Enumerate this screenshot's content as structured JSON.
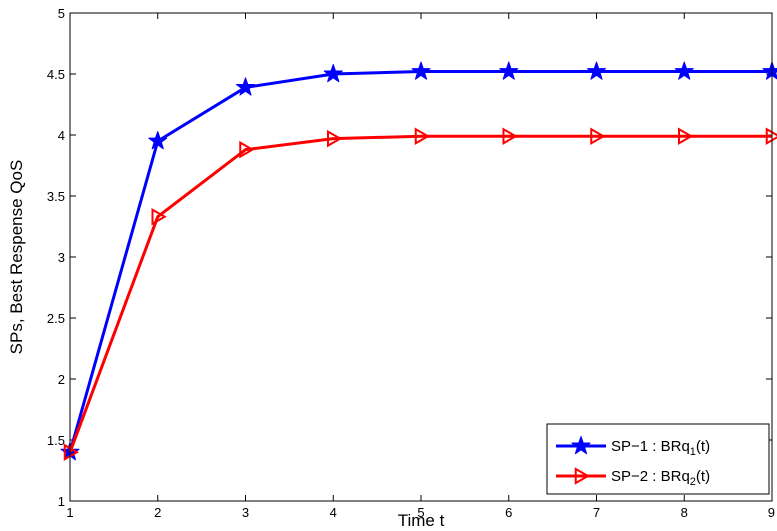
{
  "chart_data": {
    "type": "line",
    "title": "",
    "xlabel": "Time t",
    "ylabel": "SPs, Best Respense QoS",
    "x": [
      1,
      2,
      3,
      4,
      5,
      6,
      7,
      8,
      9
    ],
    "xlim": [
      1,
      9
    ],
    "ylim": [
      1,
      5
    ],
    "xticks": [
      "1",
      "2",
      "3",
      "4",
      "5",
      "6",
      "7",
      "8",
      "9"
    ],
    "yticks": [
      "1",
      "1.5",
      "2",
      "2.5",
      "3",
      "3.5",
      "4",
      "4.5",
      "5"
    ],
    "grid": false,
    "legend_position": "bottom-right",
    "series": [
      {
        "name": "SP−1 : BRq",
        "subscript": "1",
        "suffix": "(t)",
        "color": "#0000ff",
        "marker": "star",
        "values": [
          1.4,
          3.95,
          4.39,
          4.5,
          4.52,
          4.52,
          4.52,
          4.52,
          4.52
        ]
      },
      {
        "name": "SP−2 : BRq",
        "subscript": "2",
        "suffix": "(t)",
        "color": "#ff0000",
        "marker": "triangle-right",
        "values": [
          1.4,
          3.33,
          3.88,
          3.97,
          3.99,
          3.99,
          3.99,
          3.99,
          3.99
        ]
      }
    ]
  }
}
